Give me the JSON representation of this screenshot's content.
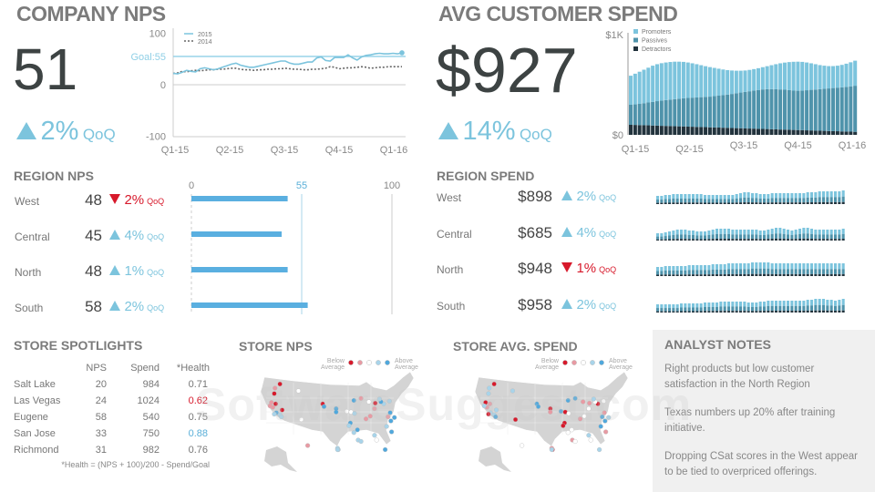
{
  "company_nps": {
    "title": "COMPANY NPS",
    "value": "51",
    "change": "2%",
    "change_label": "QoQ",
    "direction": "up"
  },
  "avg_spend": {
    "title": "AVG CUSTOMER SPEND",
    "value": "$927",
    "change": "14%",
    "change_label": "QoQ",
    "direction": "up"
  },
  "chart_data": [
    {
      "type": "line",
      "yticks": [
        "100",
        "0",
        "-100"
      ],
      "ylim": [
        -100,
        100
      ],
      "goal_label": "Goal:55",
      "goal": 55,
      "xticks": [
        "Q1-15",
        "Q2-15",
        "Q3-15",
        "Q4-15",
        "Q1-16"
      ],
      "series": [
        {
          "name": "2015",
          "style": "solid",
          "color": "#7cc4dd",
          "values": [
            22,
            21,
            24,
            28,
            26,
            25,
            31,
            33,
            31,
            29,
            31,
            34,
            37,
            40,
            42,
            38,
            36,
            34,
            34,
            36,
            38,
            40,
            42,
            44,
            46,
            46,
            42,
            40,
            40,
            42,
            44,
            44,
            52,
            54,
            47,
            46,
            53,
            53,
            53,
            58,
            52,
            48,
            54,
            57,
            58,
            60,
            61,
            60,
            60,
            61,
            60,
            62
          ]
        },
        {
          "name": "2014",
          "style": "dotted",
          "color": "#666666",
          "values": [
            22,
            23,
            26,
            25,
            27,
            28,
            27,
            28,
            29,
            29,
            30,
            30,
            31,
            32,
            32,
            30,
            29,
            29,
            28,
            29,
            29,
            30,
            30,
            31,
            31,
            32,
            31,
            30,
            30,
            29,
            29,
            30,
            30,
            31,
            32,
            35,
            34,
            31,
            32,
            33,
            33,
            34,
            35,
            34,
            32,
            33,
            34,
            34,
            35,
            35,
            35,
            35
          ]
        }
      ]
    },
    {
      "type": "bar",
      "stacked": true,
      "yticks": [
        "$1K",
        "$0"
      ],
      "ylim": [
        0,
        1000
      ],
      "xticks": [
        "Q1-15",
        "Q2-15",
        "Q3-15",
        "Q4-15",
        "Q1-16"
      ],
      "series": [
        {
          "name": "Detractors",
          "color": "#22333d",
          "values": [
            100,
            99,
            97,
            96,
            95,
            93,
            92,
            90,
            89,
            88,
            86,
            85,
            84,
            82,
            81,
            79,
            78,
            77,
            75,
            74,
            73,
            71,
            70,
            68,
            67,
            66,
            64,
            63,
            62,
            60,
            59,
            58,
            56,
            55,
            53,
            52,
            51,
            49,
            48,
            47,
            45,
            44,
            42,
            41,
            40,
            38,
            37,
            36,
            34,
            33,
            32,
            30
          ]
        },
        {
          "name": "Passives",
          "color": "#4f93ab",
          "values": [
            200,
            205,
            212,
            220,
            228,
            236,
            244,
            252,
            258,
            264,
            270,
            276,
            281,
            286,
            290,
            294,
            298,
            302,
            306,
            312,
            318,
            325,
            332,
            340,
            348,
            356,
            364,
            372,
            380,
            388,
            394,
            398,
            400,
            400,
            400,
            398,
            395,
            392,
            392,
            395,
            400,
            405,
            410,
            415,
            420,
            425,
            430,
            435,
            440,
            446,
            452,
            460
          ]
        },
        {
          "name": "Promoters",
          "color": "#7cc4dd",
          "values": [
            290,
            306,
            321,
            334,
            347,
            361,
            369,
            373,
            375,
            375,
            374,
            369,
            363,
            354,
            343,
            332,
            319,
            306,
            295,
            282,
            269,
            256,
            244,
            234,
            225,
            218,
            214,
            213,
            214,
            217,
            222,
            229,
            239,
            250,
            261,
            271,
            280,
            288,
            290,
            286,
            277,
            265,
            253,
            240,
            230,
            223,
            219,
            219,
            224,
            231,
            240,
            250
          ]
        }
      ]
    }
  ],
  "region_nps": {
    "title": "REGION NPS",
    "axis": [
      "0",
      "55",
      "100"
    ],
    "goal": 55,
    "rows": [
      {
        "name": "West",
        "value": "48",
        "nps": 48,
        "change": "2%",
        "dir": "down"
      },
      {
        "name": "Central",
        "value": "45",
        "nps": 45,
        "change": "4%",
        "dir": "up"
      },
      {
        "name": "North",
        "value": "48",
        "nps": 48,
        "change": "1%",
        "dir": "up"
      },
      {
        "name": "South",
        "value": "58",
        "nps": 58,
        "change": "2%",
        "dir": "up"
      }
    ],
    "qoq": "QoQ"
  },
  "region_spend": {
    "title": "REGION SPEND",
    "qoq": "QoQ",
    "rows": [
      {
        "name": "West",
        "value": "$898",
        "change": "2%",
        "dir": "up",
        "spark": [
          9,
          9,
          10,
          10,
          11,
          11,
          11,
          11,
          11,
          11,
          11,
          11,
          10,
          10,
          10,
          10,
          10,
          10,
          10,
          10,
          11,
          12,
          13,
          13,
          12,
          12,
          11,
          11,
          11,
          12,
          12,
          12,
          12,
          12,
          12,
          12,
          12,
          12,
          13,
          13,
          13,
          14,
          14,
          14,
          14,
          14,
          14,
          15
        ]
      },
      {
        "name": "Central",
        "value": "$685",
        "change": "4%",
        "dir": "up",
        "spark": [
          8,
          8,
          9,
          10,
          11,
          12,
          12,
          12,
          11,
          11,
          10,
          10,
          10,
          11,
          12,
          13,
          13,
          13,
          13,
          12,
          12,
          12,
          12,
          12,
          12,
          12,
          11,
          11,
          12,
          13,
          14,
          14,
          13,
          12,
          11,
          12,
          13,
          14,
          14,
          13,
          12,
          12,
          12,
          12,
          12,
          12,
          12,
          13
        ]
      },
      {
        "name": "North",
        "value": "$948",
        "change": "1%",
        "dir": "down",
        "spark": [
          10,
          10,
          11,
          11,
          11,
          11,
          11,
          11,
          12,
          12,
          12,
          12,
          12,
          12,
          13,
          13,
          13,
          13,
          14,
          14,
          14,
          14,
          14,
          14,
          15,
          15,
          15,
          15,
          15,
          14,
          14,
          14,
          14,
          14,
          14,
          14,
          14,
          14,
          14,
          14,
          14,
          14,
          14,
          14,
          14,
          14,
          14,
          14
        ]
      },
      {
        "name": "South",
        "value": "$958",
        "change": "2%",
        "dir": "up",
        "spark": [
          9,
          9,
          9,
          9,
          9,
          9,
          10,
          10,
          10,
          10,
          10,
          10,
          11,
          11,
          11,
          11,
          12,
          12,
          12,
          12,
          12,
          12,
          12,
          11,
          11,
          11,
          12,
          12,
          13,
          13,
          13,
          13,
          13,
          13,
          13,
          13,
          13,
          13,
          14,
          14,
          15,
          15,
          15,
          14,
          14,
          13,
          14,
          15
        ]
      }
    ]
  },
  "store_spotlights": {
    "title": "STORE SPOTLIGHTS",
    "headers": [
      "",
      "NPS",
      "Spend",
      "*Health"
    ],
    "rows": [
      {
        "name": "Salt Lake",
        "nps": "20",
        "spend": "984",
        "health": "0.71",
        "flag": ""
      },
      {
        "name": "Las Vegas",
        "nps": "24",
        "spend": "1024",
        "health": "0.62",
        "flag": "low"
      },
      {
        "name": "Eugene",
        "nps": "58",
        "spend": "540",
        "health": "0.75",
        "flag": ""
      },
      {
        "name": "San Jose",
        "nps": "33",
        "spend": "750",
        "health": "0.88",
        "flag": "high"
      },
      {
        "name": "Richmond",
        "nps": "31",
        "spend": "982",
        "health": "0.76",
        "flag": ""
      }
    ],
    "footnote": "*Health = (NPS + 100)/200 - Spend/Goal"
  },
  "store_nps": {
    "title": "STORE NPS",
    "legend_low": "Below Average",
    "legend_high": "Above Average"
  },
  "store_spend": {
    "title": "STORE AVG. SPEND",
    "legend_low": "Below Average",
    "legend_high": "Above Average"
  },
  "scale_colors": [
    "#d7192b",
    "#e89aa3",
    "#ffffff",
    "#a8d4ea",
    "#4fa8dd"
  ],
  "analyst_notes": {
    "title": "ANALYST NOTES",
    "notes": [
      "Right products but low customer satisfaction in the North Region",
      "Texas numbers up 20% after training initiative.",
      "Dropping CSat scores in the West  appear to be tied to overpriced offerings."
    ]
  },
  "watermark": "SoftwareSuggest.com"
}
